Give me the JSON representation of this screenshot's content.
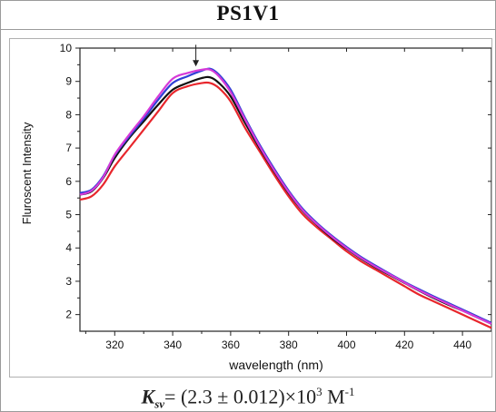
{
  "title": "PS1V1",
  "kd": {
    "symbol": "K",
    "subscript": "sv",
    "value": "= (2.3 ± 0.012)×10",
    "exponent": "3",
    "unit": " M",
    "unit_exponent": "-1"
  },
  "chart_data": {
    "type": "line",
    "xlabel": "wavelength (nm)",
    "ylabel": "Fluroscent Intensity",
    "xlim": [
      308,
      450
    ],
    "ylim": [
      1.5,
      10
    ],
    "xticks": [
      320,
      340,
      360,
      380,
      400,
      420,
      440
    ],
    "yticks": [
      2,
      3,
      4,
      5,
      6,
      7,
      8,
      9,
      10
    ],
    "grid": false,
    "annotation": {
      "type": "arrow-down",
      "x": 348,
      "y_from": 10.1,
      "y_to": 9.45
    },
    "x": [
      308,
      312,
      316,
      320,
      325,
      330,
      335,
      340,
      345,
      350,
      353,
      356,
      360,
      365,
      370,
      375,
      380,
      385,
      390,
      395,
      400,
      405,
      410,
      415,
      420,
      425,
      430,
      435,
      440,
      445,
      450
    ],
    "series": [
      {
        "color": "#e8262c",
        "values": [
          5.45,
          5.55,
          5.9,
          6.45,
          7.0,
          7.55,
          8.1,
          8.65,
          8.85,
          8.95,
          8.95,
          8.8,
          8.4,
          7.6,
          6.9,
          6.2,
          5.55,
          5.0,
          4.6,
          4.25,
          3.9,
          3.6,
          3.35,
          3.1,
          2.85,
          2.6,
          2.4,
          2.2,
          2.0,
          1.8,
          1.6
        ]
      },
      {
        "color": "#111111",
        "values": [
          5.6,
          5.7,
          6.1,
          6.7,
          7.3,
          7.8,
          8.3,
          8.75,
          8.95,
          9.1,
          9.12,
          8.95,
          8.55,
          7.75,
          7.0,
          6.3,
          5.65,
          5.1,
          4.68,
          4.3,
          3.98,
          3.68,
          3.42,
          3.18,
          2.95,
          2.72,
          2.5,
          2.3,
          2.12,
          1.92,
          1.72
        ]
      },
      {
        "color": "#2f3fd6",
        "values": [
          5.65,
          5.75,
          6.15,
          6.78,
          7.35,
          7.88,
          8.45,
          8.95,
          9.15,
          9.32,
          9.38,
          9.2,
          8.75,
          7.9,
          7.1,
          6.38,
          5.72,
          5.16,
          4.73,
          4.36,
          4.03,
          3.73,
          3.47,
          3.22,
          2.98,
          2.76,
          2.55,
          2.35,
          2.15,
          1.95,
          1.75
        ]
      },
      {
        "color": "#d63ad8",
        "values": [
          5.6,
          5.72,
          6.12,
          6.8,
          7.4,
          7.95,
          8.55,
          9.08,
          9.25,
          9.35,
          9.35,
          9.15,
          8.68,
          7.85,
          7.05,
          6.33,
          5.68,
          5.12,
          4.7,
          4.33,
          4.0,
          3.7,
          3.44,
          3.2,
          2.96,
          2.73,
          2.52,
          2.32,
          2.12,
          1.92,
          1.72
        ]
      }
    ]
  }
}
